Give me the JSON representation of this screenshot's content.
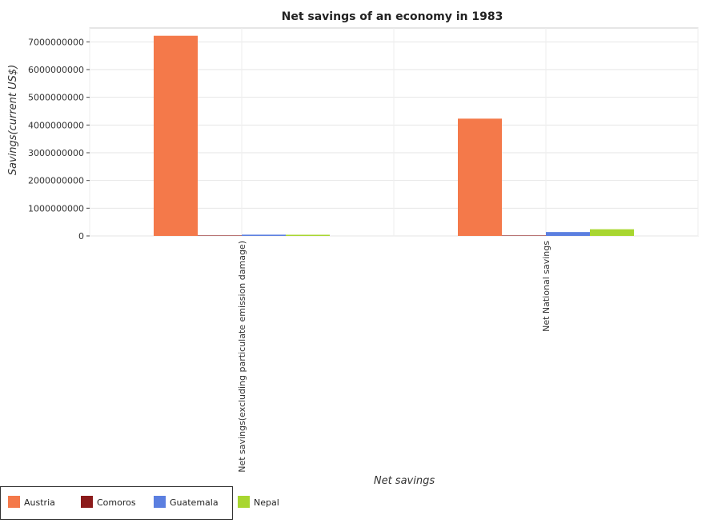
{
  "chart_data": {
    "type": "bar",
    "title": "Net savings of an economy in 1983",
    "xlabel": "Net savings",
    "ylabel": "Savings(current US$)",
    "ylim": [
      0,
      7500000000
    ],
    "yticks": [
      0,
      1000000000,
      2000000000,
      3000000000,
      4000000000,
      5000000000,
      6000000000,
      7000000000
    ],
    "ytick_labels": [
      "0",
      "1000000000",
      "2000000000",
      "3000000000",
      "4000000000",
      "5000000000",
      "6000000000",
      "7000000000"
    ],
    "categories": [
      "Net savings(excluding particulate emission damage)",
      "Net National savings"
    ],
    "series": [
      {
        "name": "Austria",
        "color": "#f4794a",
        "values": [
          7220000000,
          4230000000
        ]
      },
      {
        "name": "Comoros",
        "color": "#8b1a1a",
        "values": [
          3000000,
          2000000
        ]
      },
      {
        "name": "Guatemala",
        "color": "#5b7fe0",
        "values": [
          45000000,
          140000000
        ]
      },
      {
        "name": "Nepal",
        "color": "#a8d630",
        "values": [
          42000000,
          240000000
        ]
      }
    ],
    "grid": true,
    "legend_position": "bottom-left"
  }
}
